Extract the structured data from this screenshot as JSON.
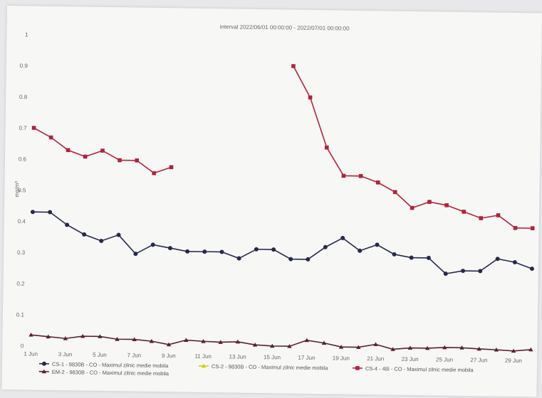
{
  "chart_data": {
    "type": "line",
    "title": "interval 2022/06/01 00:00:00 - 2022/07/01 00:00:00",
    "ylabel": "mg/m³",
    "xlabel": "",
    "ylim": [
      0,
      1
    ],
    "yticks": [
      "0",
      "0.1",
      "0.2",
      "0.3",
      "0.4",
      "0.5",
      "0.6",
      "0.7",
      "0.8",
      "0.9",
      "1"
    ],
    "xticks": [
      "1 Jun",
      "3 Jun",
      "5 Jun",
      "7 Jun",
      "9 Jun",
      "11 Jun",
      "13 Jun",
      "15 Jun",
      "17 Jun",
      "19 Jun",
      "21 Jun",
      "23 Jun",
      "25 Jun",
      "27 Jun",
      "29 Jun"
    ],
    "grid": false,
    "legend_position": "bottom",
    "series": [
      {
        "name": "CS-1 - 9830B - CO - Maximul zilnic medie mobila",
        "color": "#262a4a",
        "marker": "circle",
        "x": [
          1,
          2,
          3,
          4,
          5,
          6,
          7,
          8,
          9,
          10,
          11,
          12,
          13,
          14,
          15,
          16,
          17,
          18,
          19,
          20,
          21,
          22,
          23,
          24,
          25,
          26,
          27,
          28,
          29,
          30
        ],
        "values": [
          0.43,
          0.43,
          0.39,
          0.36,
          0.34,
          0.36,
          0.3,
          0.33,
          0.32,
          0.31,
          0.31,
          0.31,
          0.29,
          0.32,
          0.32,
          0.29,
          0.29,
          0.33,
          0.36,
          0.32,
          0.34,
          0.31,
          0.3,
          0.3,
          0.25,
          0.26,
          0.26,
          0.3,
          0.29,
          0.27
        ]
      },
      {
        "name": "CS-2 - 9830B - CO - Maximul zilnic medie mobila",
        "color": "#c8d400",
        "marker": "triangle",
        "x": [],
        "values": []
      },
      {
        "name": "CS-4 - 48i - CO - Maximul zilnic medie mobila",
        "color": "#b0243a",
        "marker": "square",
        "x": [
          1,
          2,
          3,
          4,
          5,
          6,
          7,
          8,
          9,
          16,
          17,
          18,
          19,
          20,
          21,
          22,
          23,
          24,
          25,
          26,
          27,
          28,
          29,
          30
        ],
        "values": [
          0.7,
          0.67,
          0.63,
          0.61,
          0.63,
          0.6,
          0.6,
          0.56,
          0.58,
          0.91,
          0.81,
          0.65,
          0.56,
          0.56,
          0.54,
          0.51,
          0.46,
          0.48,
          0.47,
          0.45,
          0.43,
          0.44,
          0.4,
          0.4
        ]
      },
      {
        "name": "EM-2 - 9830B - CO - Maximul zilnic medie mobila",
        "color": "#5a2030",
        "marker": "triangle",
        "x": [
          1,
          2,
          3,
          4,
          5,
          6,
          7,
          8,
          9,
          10,
          11,
          12,
          13,
          14,
          15,
          16,
          17,
          18,
          19,
          20,
          21,
          22,
          23,
          24,
          25,
          26,
          27,
          28,
          29,
          30
        ],
        "values": [
          0.035,
          0.03,
          0.025,
          0.033,
          0.033,
          0.025,
          0.025,
          0.02,
          0.01,
          0.025,
          0.022,
          0.02,
          0.022,
          0.013,
          0.01,
          0.01,
          0.03,
          0.022,
          0.01,
          0.01,
          0.02,
          0.005,
          0.01,
          0.01,
          0.013,
          0.013,
          0.01,
          0.008,
          0.005,
          0.01
        ]
      }
    ]
  }
}
